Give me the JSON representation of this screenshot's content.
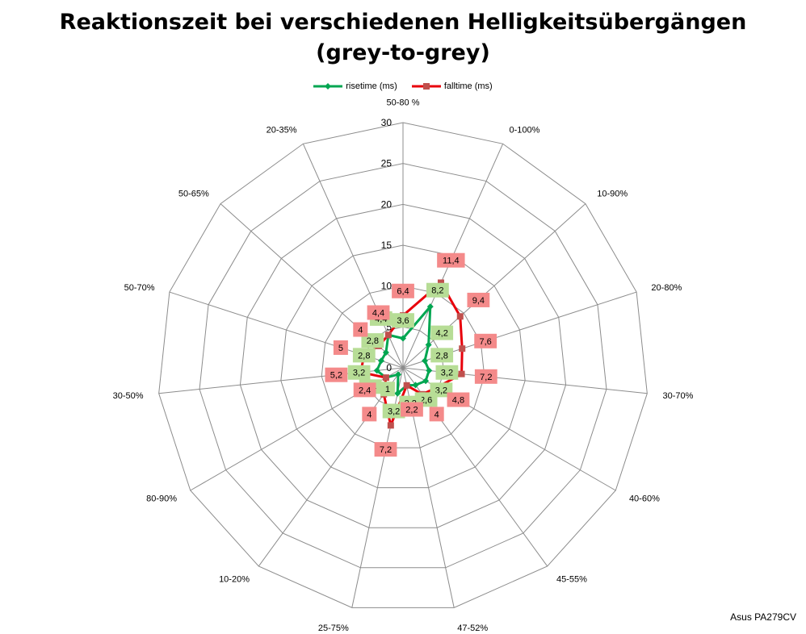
{
  "chart_data": {
    "type": "radar",
    "title_line1": "Reaktionszeit bei verschiedenen Helligkeitsübergängen",
    "title_line2": "(grey-to-grey)",
    "categories": [
      "50-80 %",
      "0-100%",
      "10-90%",
      "20-80%",
      "30-70%",
      "40-60%",
      "45-55%",
      "47-52%",
      "25-75%",
      "10-20%",
      "80-90%",
      "30-50%",
      "50-70%",
      "50-65%",
      "20-35%"
    ],
    "rlim": [
      0,
      30
    ],
    "rticks": [
      "0",
      "5",
      "10",
      "15",
      "20",
      "25",
      "30"
    ],
    "grid": true,
    "legend": "top",
    "series": [
      {
        "name": "risetime (ms)",
        "color": "#00a651",
        "values": [
          3.6,
          8.2,
          4.2,
          2.8,
          3.2,
          3.2,
          2.6,
          2.2,
          3.2,
          1,
          2.4,
          3.2,
          2.8,
          2.8,
          4.4
        ],
        "labels": [
          "3,6",
          "8,2",
          "4,2",
          "2,8",
          "3,2",
          "3,2",
          "2,6",
          "2,2",
          "3,2",
          "1",
          "2,4",
          "3,2",
          "2,8",
          "2,8",
          "4,4"
        ]
      },
      {
        "name": "falltime (ms)",
        "color": "#e8000b",
        "values": [
          6.4,
          11.4,
          9.4,
          7.6,
          7.2,
          4.8,
          4,
          2.2,
          7.2,
          4,
          2.4,
          5.2,
          5,
          4,
          4.4
        ],
        "labels": [
          "6,4",
          "11,4",
          "9,4",
          "7,6",
          "7,2",
          "4,8",
          "4",
          "2,2",
          "7,2",
          "4",
          "2,4",
          "5,2",
          "5",
          "4",
          "4,4"
        ]
      }
    ],
    "watermark": "Asus PA279CV"
  }
}
